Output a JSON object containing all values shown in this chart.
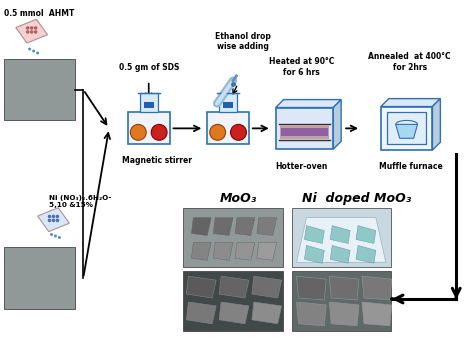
{
  "bg_color": "#ffffff",
  "labels": {
    "ahmt": "0.5 mmol  AHMT",
    "sds": "0.5 gm of SDS",
    "ethanol": "Ethanol drop\nwise adding",
    "heated": "Heated at 90°C\nfor 6 hrs",
    "annealed": "Annealed  at 400°C\nfor 2hrs",
    "ni": "Ni (NO₃)₂.6H₂O-\n5,10 &15%",
    "mag_stirrer": "Magnetic stirrer",
    "hotter_oven": "Hotter-oven",
    "muffle_furnace": "Muffle furnace",
    "moo3": "MoO₃",
    "ni_doped": "Ni  doped MoO₃"
  },
  "orange_circle": "#e07820",
  "red_circle": "#cc2020",
  "box_edge": "#3070b0",
  "box_face": "#f0f4f8",
  "oven_top_face": "#dce8f8",
  "oven_side_face": "#b8cce0",
  "muffle_inner": "#a8d8f0",
  "dropper_color": "#7ab0d8",
  "photo_gray1": "#b0b8b8",
  "photo_gray2": "#98a8b0",
  "photo_sem1": "#606868",
  "photo_sem2": "#707878",
  "arrow_color": "#000000"
}
